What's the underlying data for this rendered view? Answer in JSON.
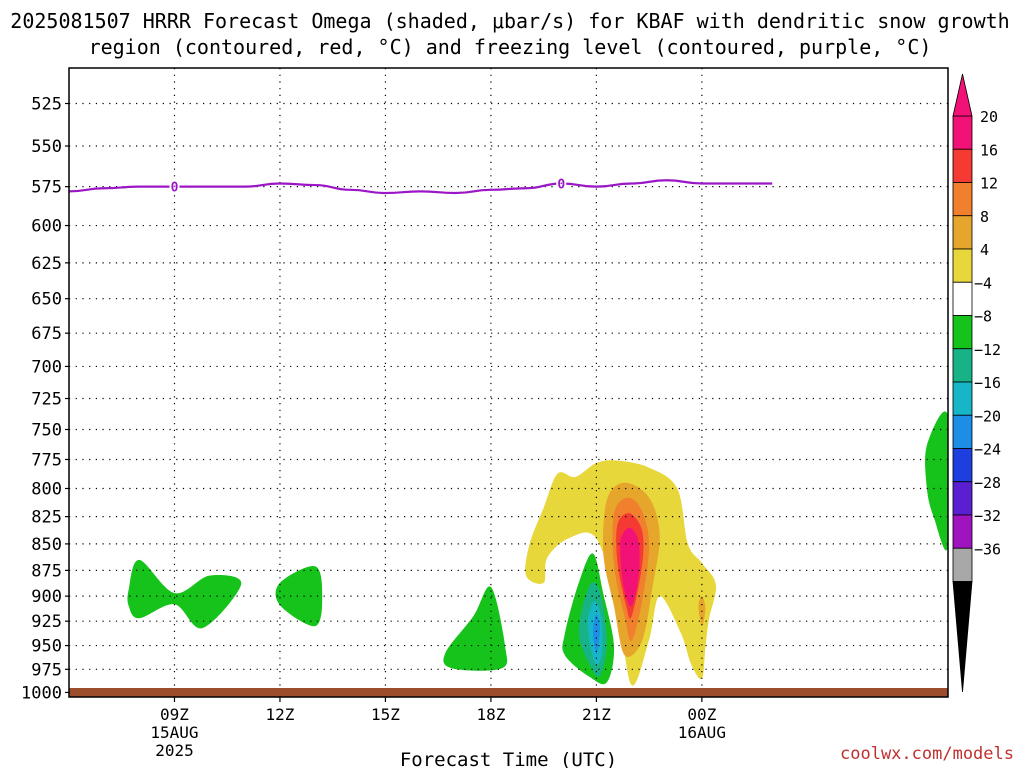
{
  "title": "2025081507 HRRR Forecast Omega (shaded, μbar/s) for KBAF with dendritic snow growth region (contoured, red, °C) and freezing level (contoured, purple, °C)",
  "credit": "coolwx.com/models",
  "chart_data": {
    "type": "contour",
    "xlabel": "Forecast Time (UTC)",
    "ylabel": "",
    "x_range_hours_utc": [
      6,
      31
    ],
    "y_range_mb": [
      505,
      1005
    ],
    "y_scale": "log-pressure",
    "y_ticks": [
      525,
      550,
      575,
      600,
      625,
      650,
      675,
      700,
      725,
      750,
      775,
      800,
      825,
      850,
      875,
      900,
      925,
      950,
      975,
      1000
    ],
    "x_ticks": [
      {
        "hour": 9,
        "label": "09Z",
        "sub1": "15AUG",
        "sub2": "2025"
      },
      {
        "hour": 12,
        "label": "12Z",
        "sub1": "",
        "sub2": ""
      },
      {
        "hour": 15,
        "label": "15Z",
        "sub1": "",
        "sub2": ""
      },
      {
        "hour": 18,
        "label": "18Z",
        "sub1": "",
        "sub2": ""
      },
      {
        "hour": 21,
        "label": "21Z",
        "sub1": "",
        "sub2": ""
      },
      {
        "hour": 24,
        "label": "00Z",
        "sub1": "16AUG",
        "sub2": ""
      }
    ],
    "grid": true,
    "colorbar": {
      "labels": [
        "20",
        "16",
        "12",
        "8",
        "4",
        "−4",
        "−8",
        "−12",
        "−16",
        "−20",
        "−24",
        "−28",
        "−32",
        "−36"
      ],
      "colors": [
        "#f21177",
        "#f53a33",
        "#f0802d",
        "#e6a62c",
        "#e8d73a",
        "#ffffff",
        "#16c31b",
        "#17b387",
        "#16b6c6",
        "#1c8ee6",
        "#1e3ee0",
        "#5a1fd0",
        "#a014c0",
        "#a8a8a8"
      ]
    },
    "freezing_level": {
      "contour_label": "0",
      "color": "#9b17c6",
      "hours": [
        6,
        7,
        8,
        9,
        10,
        11,
        12,
        13,
        14,
        15,
        16,
        17,
        18,
        19,
        20,
        21,
        22,
        23,
        24,
        25,
        26
      ],
      "pressure_mb": [
        578,
        576,
        575,
        575,
        575,
        575,
        573,
        574,
        577,
        579,
        578,
        579,
        577,
        576,
        573,
        575,
        573,
        571,
        573,
        573,
        573
      ],
      "label_hours": [
        9,
        20
      ]
    },
    "omega_regions": [
      {
        "name": "green-1",
        "sign": "upward",
        "level": "-4",
        "color": "#16c31b",
        "points": [
          [
            7.7,
            893
          ],
          [
            8.0,
            865
          ],
          [
            9.0,
            897
          ],
          [
            10.0,
            880
          ],
          [
            10.9,
            888
          ],
          [
            9.8,
            932
          ],
          [
            9.0,
            908
          ],
          [
            8.0,
            922
          ],
          [
            7.7,
            910
          ]
        ]
      },
      {
        "name": "green-2",
        "sign": "upward",
        "level": "-4",
        "color": "#16c31b",
        "points": [
          [
            12.0,
            887
          ],
          [
            13.0,
            871
          ],
          [
            13.2,
            900
          ],
          [
            13.0,
            930
          ],
          [
            12.0,
            909
          ]
        ]
      },
      {
        "name": "green-3",
        "sign": "upward",
        "level": "-4",
        "color": "#16c31b",
        "points": [
          [
            16.7,
            958
          ],
          [
            17.5,
            920
          ],
          [
            18.0,
            891
          ],
          [
            18.4,
            950
          ],
          [
            18.3,
            974
          ],
          [
            16.9,
            974
          ]
        ]
      },
      {
        "name": "green-4",
        "sign": "upward",
        "level": "-4",
        "color": "#16c31b",
        "points": [
          [
            20.1,
            938
          ],
          [
            20.5,
            887
          ],
          [
            20.9,
            859
          ],
          [
            21.2,
            898
          ],
          [
            21.5,
            951
          ],
          [
            21.3,
            989
          ],
          [
            20.8,
            983
          ],
          [
            20.1,
            960
          ]
        ]
      },
      {
        "name": "teal-4",
        "sign": "upward",
        "level": "-8",
        "color": "#17b387",
        "points": [
          [
            20.5,
            935
          ],
          [
            20.8,
            890
          ],
          [
            21.1,
            895
          ],
          [
            21.3,
            945
          ],
          [
            21.1,
            982
          ],
          [
            20.8,
            970
          ]
        ]
      },
      {
        "name": "cyan-4",
        "sign": "upward",
        "level": "-12",
        "color": "#16b6c6",
        "points": [
          [
            20.75,
            928
          ],
          [
            20.95,
            905
          ],
          [
            21.15,
            925
          ],
          [
            21.15,
            960
          ],
          [
            20.95,
            968
          ]
        ]
      },
      {
        "name": "blue-4",
        "sign": "upward",
        "level": "-16",
        "color": "#1c8ee6",
        "points": [
          [
            20.9,
            935
          ],
          [
            21.0,
            918
          ],
          [
            21.1,
            933
          ],
          [
            21.0,
            958
          ]
        ]
      },
      {
        "name": "green-5",
        "sign": "upward",
        "level": "-4",
        "color": "#16c31b",
        "points": [
          [
            31.0,
            739
          ],
          [
            30.4,
            763
          ],
          [
            30.4,
            800
          ],
          [
            30.6,
            826
          ],
          [
            31.0,
            852
          ]
        ]
      },
      {
        "name": "yellow-main",
        "sign": "downward",
        "level": "4",
        "color": "#e8d73a",
        "points": [
          [
            19.0,
            880
          ],
          [
            19.1,
            850
          ],
          [
            19.5,
            817
          ],
          [
            19.9,
            787
          ],
          [
            20.4,
            790
          ],
          [
            21.0,
            778
          ],
          [
            21.6,
            776
          ],
          [
            22.5,
            782
          ],
          [
            23.3,
            800
          ],
          [
            23.6,
            850
          ],
          [
            24.0,
            868
          ],
          [
            24.4,
            889
          ],
          [
            24.2,
            923
          ],
          [
            24.1,
            952
          ],
          [
            24.0,
            985
          ],
          [
            23.7,
            970
          ],
          [
            23.4,
            937
          ],
          [
            22.8,
            900
          ],
          [
            22.5,
            944
          ],
          [
            22.0,
            992
          ],
          [
            21.6,
            912
          ],
          [
            21.0,
            845
          ],
          [
            20.2,
            845
          ],
          [
            19.6,
            863
          ],
          [
            19.5,
            887
          ]
        ]
      },
      {
        "name": "gold-main",
        "sign": "downward",
        "level": "8",
        "color": "#e6a62c",
        "points": [
          [
            21.3,
            810
          ],
          [
            21.8,
            795
          ],
          [
            22.5,
            808
          ],
          [
            22.8,
            842
          ],
          [
            22.6,
            890
          ],
          [
            22.3,
            945
          ],
          [
            21.8,
            960
          ],
          [
            21.5,
            910
          ],
          [
            21.2,
            860
          ]
        ]
      },
      {
        "name": "orange-main",
        "sign": "downward",
        "level": "12",
        "color": "#f0802d",
        "points": [
          [
            21.5,
            822
          ],
          [
            21.9,
            808
          ],
          [
            22.3,
            820
          ],
          [
            22.5,
            852
          ],
          [
            22.3,
            905
          ],
          [
            22.0,
            945
          ],
          [
            21.8,
            920
          ],
          [
            21.5,
            870
          ]
        ]
      },
      {
        "name": "red-main",
        "sign": "downward",
        "level": "16",
        "color": "#f53a33",
        "points": [
          [
            21.6,
            832
          ],
          [
            21.95,
            822
          ],
          [
            22.3,
            838
          ],
          [
            22.3,
            870
          ],
          [
            22.0,
            920
          ],
          [
            21.85,
            910
          ],
          [
            21.6,
            868
          ]
        ]
      },
      {
        "name": "magenta-main",
        "sign": "downward",
        "level": "20",
        "color": "#f21177",
        "points": [
          [
            21.7,
            845
          ],
          [
            21.95,
            835
          ],
          [
            22.2,
            848
          ],
          [
            22.2,
            880
          ],
          [
            22.0,
            910
          ],
          [
            21.8,
            895
          ],
          [
            21.7,
            870
          ]
        ]
      },
      {
        "name": "gold-small",
        "sign": "downward",
        "level": "8",
        "color": "#e6a62c",
        "points": [
          [
            23.9,
            910
          ],
          [
            24.0,
            900
          ],
          [
            24.1,
            912
          ],
          [
            24.0,
            930
          ]
        ]
      }
    ],
    "terrain": {
      "color": "#9c4d2c",
      "pressure_mb": 1005
    }
  }
}
